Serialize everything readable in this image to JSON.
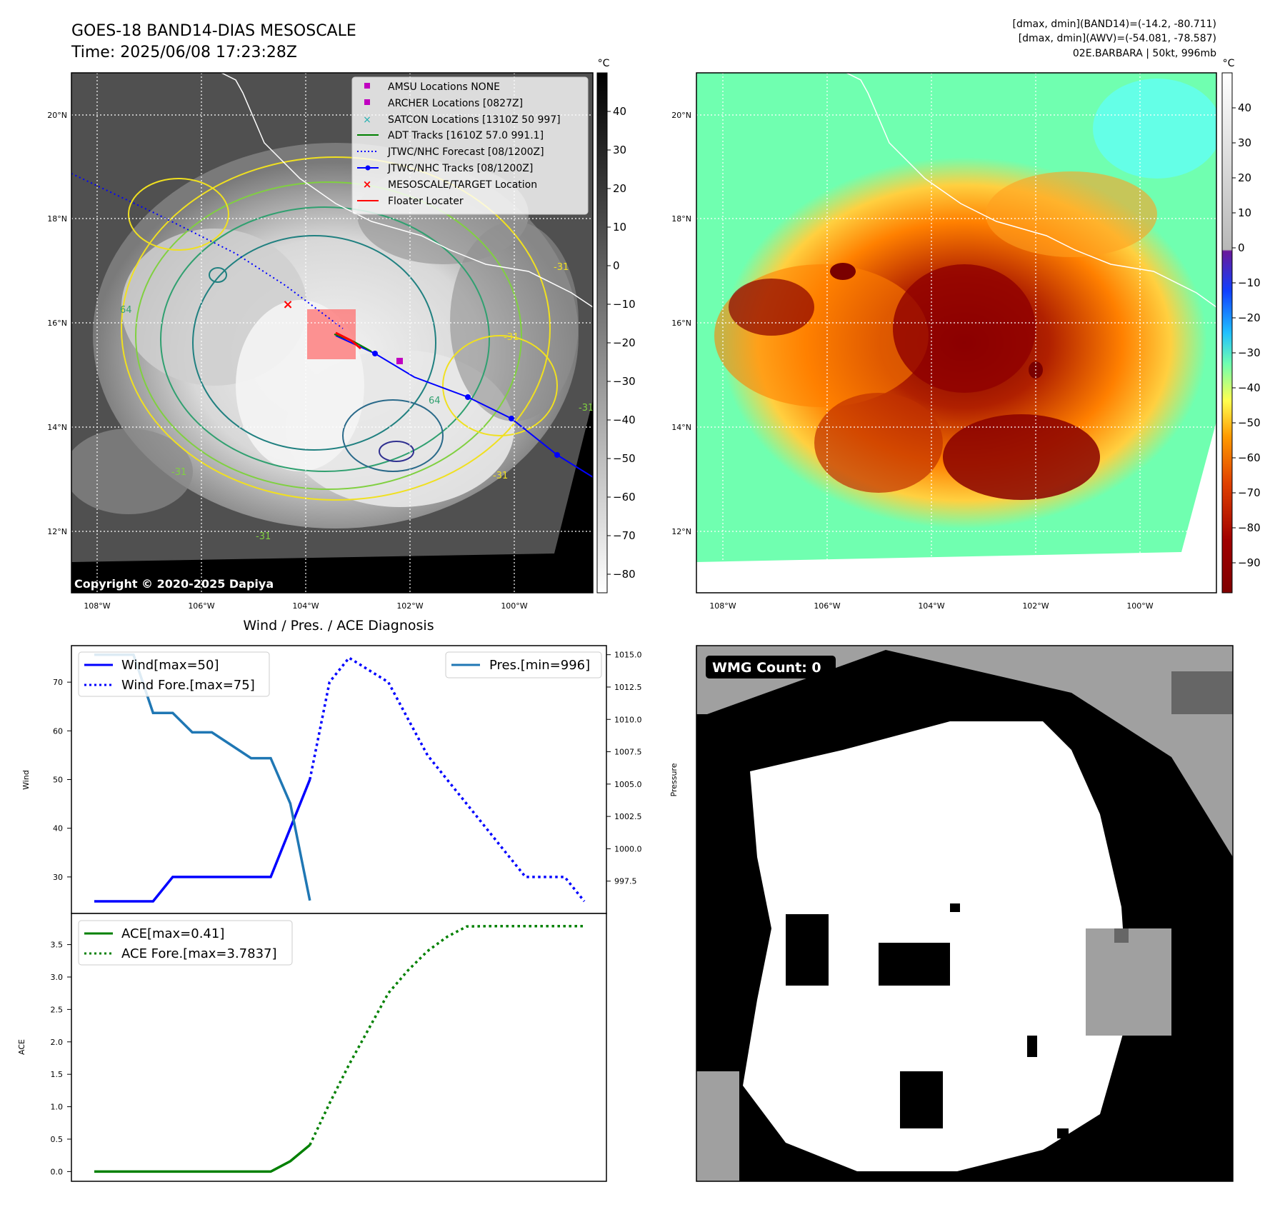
{
  "header": {
    "title_line1": "GOES-18 BAND14-DIAS MESOSCALE",
    "title_line2": "Time: 2025/06/08 17:23:28Z",
    "info_line1": "[dmax, dmin](BAND14)=(-14.2, -80.711)",
    "info_line2": "[dmax, dmin](AWV)=(-54.081, -78.587)",
    "info_line3": "02E.BARBARA | 50kt, 996mb"
  },
  "map_panels": {
    "lat_labels": [
      "20°N",
      "18°N",
      "16°N",
      "14°N",
      "12°N"
    ],
    "lon_labels": [
      "108°W",
      "106°W",
      "104°W",
      "102°W",
      "100°W"
    ],
    "copyright": "Copyright © 2020-2025 Dapiya",
    "legend": [
      {
        "label": "AMSU Locations NONE",
        "marker": "square",
        "color": "#c000c0"
      },
      {
        "label": "ARCHER Locations [0827Z]",
        "marker": "square",
        "color": "#c000c0"
      },
      {
        "label": "SATCON Locations [1310Z 50 997]",
        "marker": "x",
        "color": "#20b0b0"
      },
      {
        "label": "ADT Tracks [1610Z 57.0 991.1]",
        "marker": "line",
        "color": "#008000"
      },
      {
        "label": "JTWC/NHC Forecast [08/1200Z]",
        "marker": "dotted",
        "color": "#0000ff"
      },
      {
        "label": "JTWC/NHC Tracks [08/1200Z]",
        "marker": "line-dot",
        "color": "#0000ff"
      },
      {
        "label": "MESOSCALE/TARGET Location",
        "marker": "x",
        "color": "#ff0000"
      },
      {
        "label": "Floater Locater",
        "marker": "line",
        "color": "#ff0000"
      }
    ],
    "contour_labels": [
      "-31",
      "-31",
      "-31",
      "-31",
      "64",
      "64",
      "-31",
      "-31"
    ],
    "colorbar_gray": {
      "unit": "°C",
      "ticks": [
        "40",
        "30",
        "20",
        "10",
        "0",
        "−10",
        "−20",
        "−30",
        "−40",
        "−50",
        "−60",
        "−70",
        "−80"
      ]
    },
    "colorbar_color": {
      "unit": "°C",
      "ticks": [
        "40",
        "30",
        "20",
        "10",
        "0",
        "−10",
        "−20",
        "−30",
        "−40",
        "−50",
        "−60",
        "−70",
        "−80",
        "−90"
      ]
    },
    "wmg_label": "WMG Count: 0"
  },
  "chart_data": [
    {
      "type": "line",
      "title": "Wind / Pres. / ACE Diagnosis",
      "ylabel": "Wind",
      "ylabel_right": "Pressure",
      "ylim": [
        22.5,
        77.5
      ],
      "ylim_right": [
        995.0,
        1015.7
      ],
      "yticks": [
        "30",
        "40",
        "50",
        "60",
        "70"
      ],
      "yticks_right": [
        "997.5",
        "1000.0",
        "1002.5",
        "1005.0",
        "1007.5",
        "1010.0",
        "1012.5",
        "1015.0"
      ],
      "x_index_range": [
        0,
        25
      ],
      "legend_left": [
        "Wind[max=50]",
        "Wind Fore.[max=75]"
      ],
      "legend_right": [
        "Pres.[min=996]"
      ],
      "series": [
        {
          "name": "Wind[max=50]",
          "style": "solid",
          "color": "#0000ff",
          "x": [
            0,
            1,
            2,
            3,
            4,
            5,
            6,
            7,
            8,
            9,
            10,
            11
          ],
          "values": [
            25,
            25,
            25,
            25,
            30,
            30,
            30,
            30,
            30,
            30,
            40,
            50
          ]
        },
        {
          "name": "Wind Fore.[max=75]",
          "style": "dotted",
          "color": "#0000ff",
          "x": [
            11,
            12,
            13,
            14,
            15,
            16,
            17,
            18,
            19,
            20,
            21,
            22,
            23,
            24,
            25
          ],
          "values": [
            50,
            70,
            75,
            72.5,
            70,
            62.5,
            55,
            50,
            45,
            40,
            35,
            30,
            30,
            30,
            25
          ]
        },
        {
          "name": "Pres.[min=996]",
          "style": "solid",
          "color": "#1f77b4",
          "axis": "right",
          "x": [
            0,
            1,
            2,
            3,
            4,
            5,
            6,
            7,
            8,
            9,
            10,
            11
          ],
          "values": [
            1015,
            1015,
            1015,
            1010.5,
            1010.5,
            1009,
            1009,
            1008,
            1007,
            1007,
            1003.5,
            996
          ]
        }
      ]
    },
    {
      "type": "line",
      "ylabel": "ACE",
      "ylim": [
        -0.15,
        3.98
      ],
      "yticks": [
        "0.0",
        "0.5",
        "1.0",
        "1.5",
        "2.0",
        "2.5",
        "3.0",
        "3.5"
      ],
      "x_index_range": [
        0,
        25
      ],
      "legend": [
        "ACE[max=0.41]",
        "ACE Fore.[max=3.7837]"
      ],
      "series": [
        {
          "name": "ACE[max=0.41]",
          "style": "solid",
          "color": "#008000",
          "x": [
            0,
            1,
            2,
            3,
            4,
            5,
            6,
            7,
            8,
            9,
            10,
            11
          ],
          "values": [
            0,
            0,
            0,
            0,
            0,
            0,
            0,
            0,
            0,
            0,
            0.16,
            0.41
          ]
        },
        {
          "name": "ACE Fore.[max=3.7837]",
          "style": "dotted",
          "color": "#008000",
          "x": [
            11,
            12,
            13,
            14,
            15,
            16,
            17,
            18,
            19,
            20,
            21,
            22,
            23,
            24,
            25
          ],
          "values": [
            0.41,
            1.05,
            1.65,
            2.2,
            2.75,
            3.1,
            3.4,
            3.62,
            3.78,
            3.7837,
            3.7837,
            3.7837,
            3.7837,
            3.7837,
            3.7837
          ]
        }
      ]
    }
  ]
}
